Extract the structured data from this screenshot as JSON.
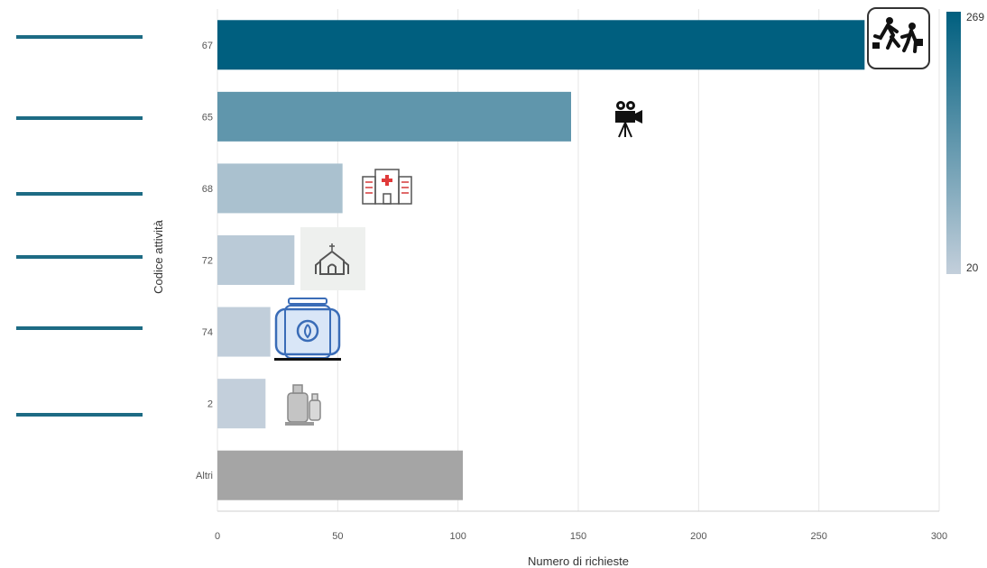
{
  "chart_data": {
    "type": "bar",
    "orientation": "horizontal",
    "categories": [
      "67",
      "65",
      "68",
      "72",
      "74",
      "2",
      "Altri"
    ],
    "values": [
      269,
      147,
      52,
      32,
      22,
      20,
      102
    ],
    "category_icons": [
      "running-people-icon",
      "movie-camera-icon",
      "hospital-icon",
      "church-icon",
      "gas-tank-icon",
      "gas-cylinders-icon",
      ""
    ],
    "xlabel": "Numero di richieste",
    "ylabel": "Codice attività",
    "xlim": [
      0,
      300
    ],
    "xticks": [
      "0",
      "50",
      "100",
      "150",
      "200",
      "250",
      "300"
    ],
    "grid": true,
    "colorbar": {
      "min_label": "20",
      "max_label": "269",
      "min": 20,
      "max": 269
    },
    "colors": {
      "high": "#005f7f",
      "low": "#c3cfdb",
      "other": "#a5a5a5"
    }
  }
}
